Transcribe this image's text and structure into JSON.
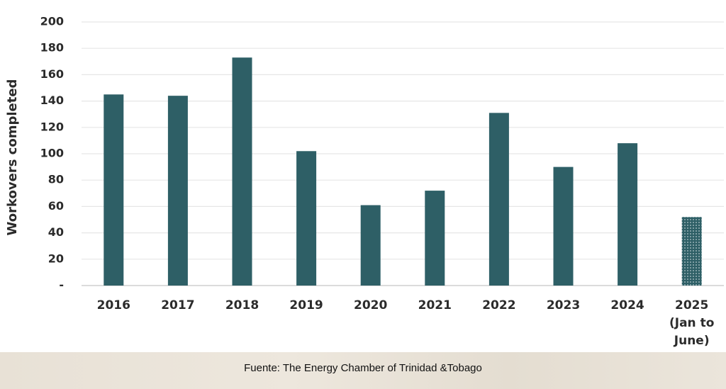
{
  "chart_data": {
    "type": "bar",
    "y_label": "Workovers completed",
    "categories": [
      "2016",
      "2017",
      "2018",
      "2019",
      "2020",
      "2021",
      "2022",
      "2023",
      "2024",
      "2025 (Jan to June)"
    ],
    "values": [
      145,
      144,
      173,
      102,
      61,
      72,
      131,
      90,
      108,
      52
    ],
    "color": "#2e5f66",
    "dotted_bar": 9,
    "ylim": [
      0,
      200
    ],
    "yticks": [
      {
        "value": 0,
        "label": "-"
      },
      20,
      40,
      60,
      80,
      100,
      120,
      140,
      160,
      180,
      200
    ],
    "grid": true,
    "source": "Fuente: The Energy Chamber of Trinidad &Tobago"
  }
}
